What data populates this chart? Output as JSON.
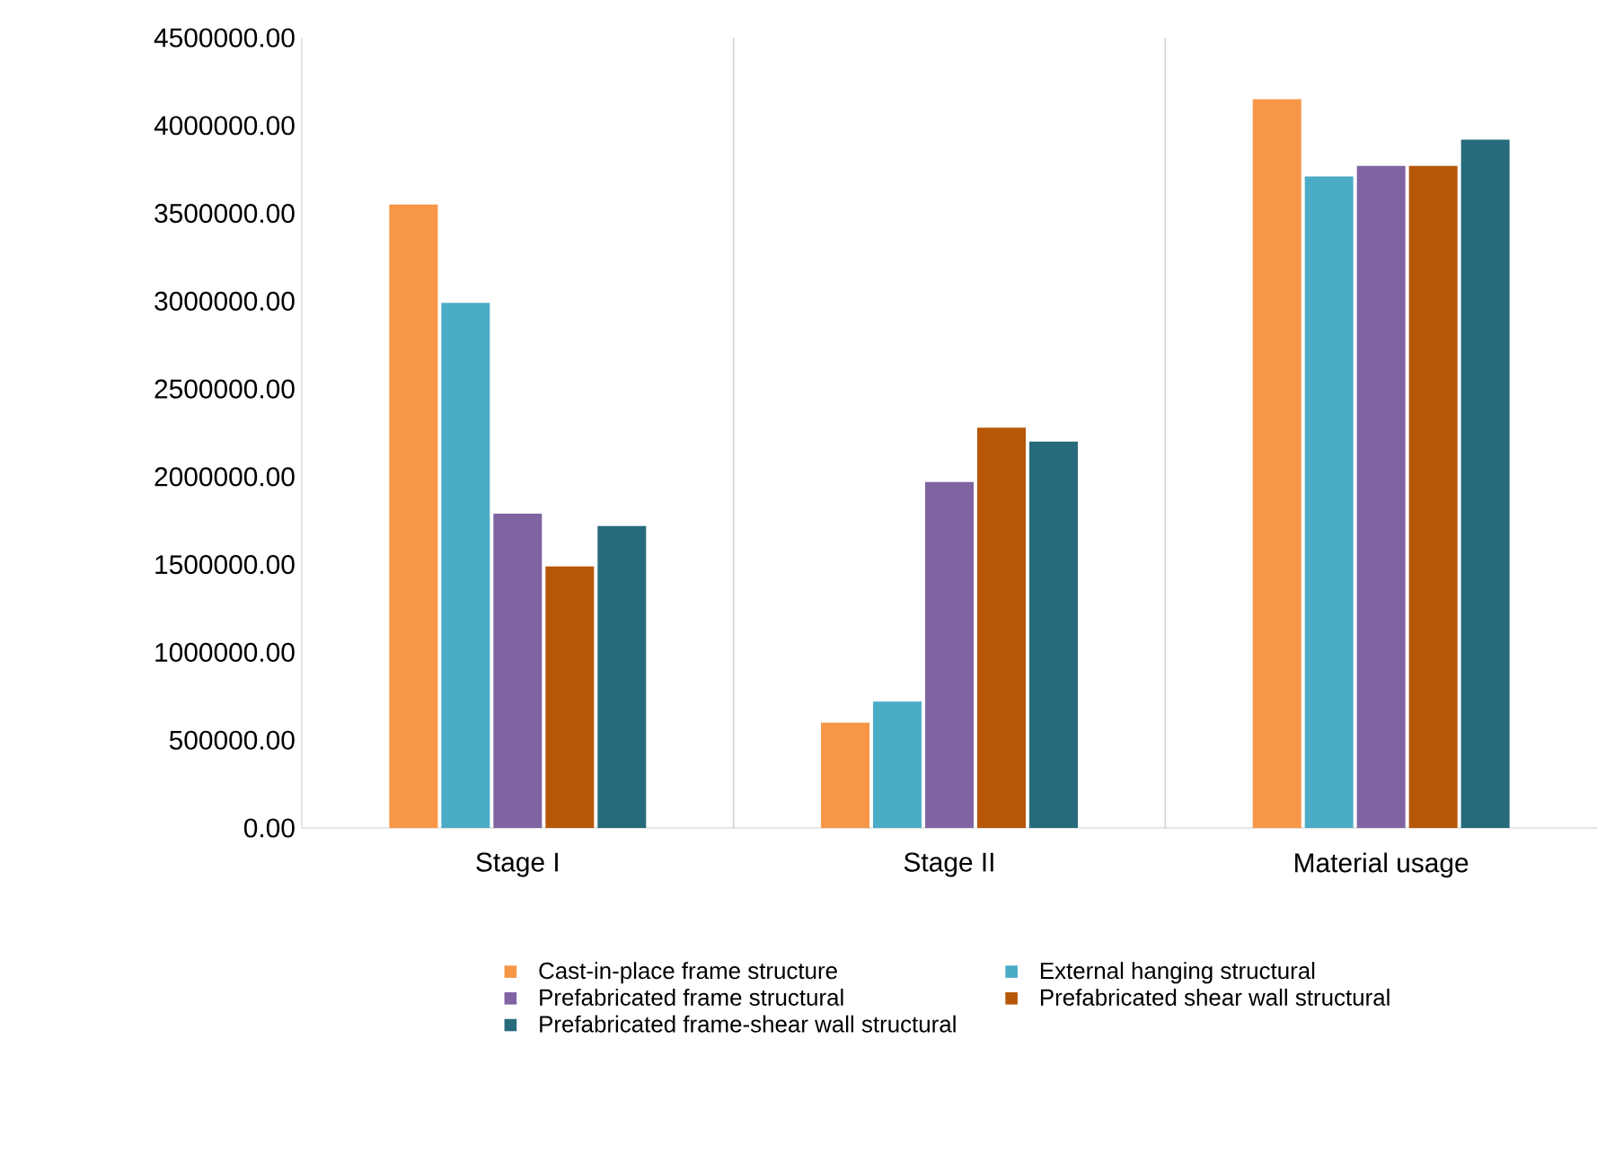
{
  "chart_data": {
    "type": "bar",
    "categories": [
      "Stage I",
      "Stage II",
      "Material usage"
    ],
    "series": [
      {
        "name": "Cast-in-place frame structure",
        "color": "#f79646",
        "values": [
          3550000,
          600000,
          4150000
        ]
      },
      {
        "name": "External hanging structural",
        "color": "#4bacc6",
        "values": [
          2990000,
          720000,
          3710000
        ]
      },
      {
        "name": "Prefabricated frame structural",
        "color": "#8064a2",
        "values": [
          1790000,
          1970000,
          3770000
        ]
      },
      {
        "name": "Prefabricated shear wall structural",
        "color": "#b65708",
        "values": [
          1490000,
          2280000,
          3770000
        ]
      },
      {
        "name": "Prefabricated frame-shear wall structural",
        "color": "#276a7c",
        "values": [
          1720000,
          2200000,
          3920000
        ]
      }
    ],
    "ylim": [
      0,
      4500000
    ],
    "yticks": [
      {
        "value": 0,
        "label": "0.00"
      },
      {
        "value": 500000,
        "label": "500000.00"
      },
      {
        "value": 1000000,
        "label": "1000000.00"
      },
      {
        "value": 1500000,
        "label": "1500000.00"
      },
      {
        "value": 2000000,
        "label": "2000000.00"
      },
      {
        "value": 2500000,
        "label": "2500000.00"
      },
      {
        "value": 3000000,
        "label": "3000000.00"
      },
      {
        "value": 3500000,
        "label": "3500000.00"
      },
      {
        "value": 4000000,
        "label": "4000000.00"
      },
      {
        "value": 4500000,
        "label": "4500000.00"
      }
    ],
    "grid": "x",
    "legend": "bottom"
  }
}
